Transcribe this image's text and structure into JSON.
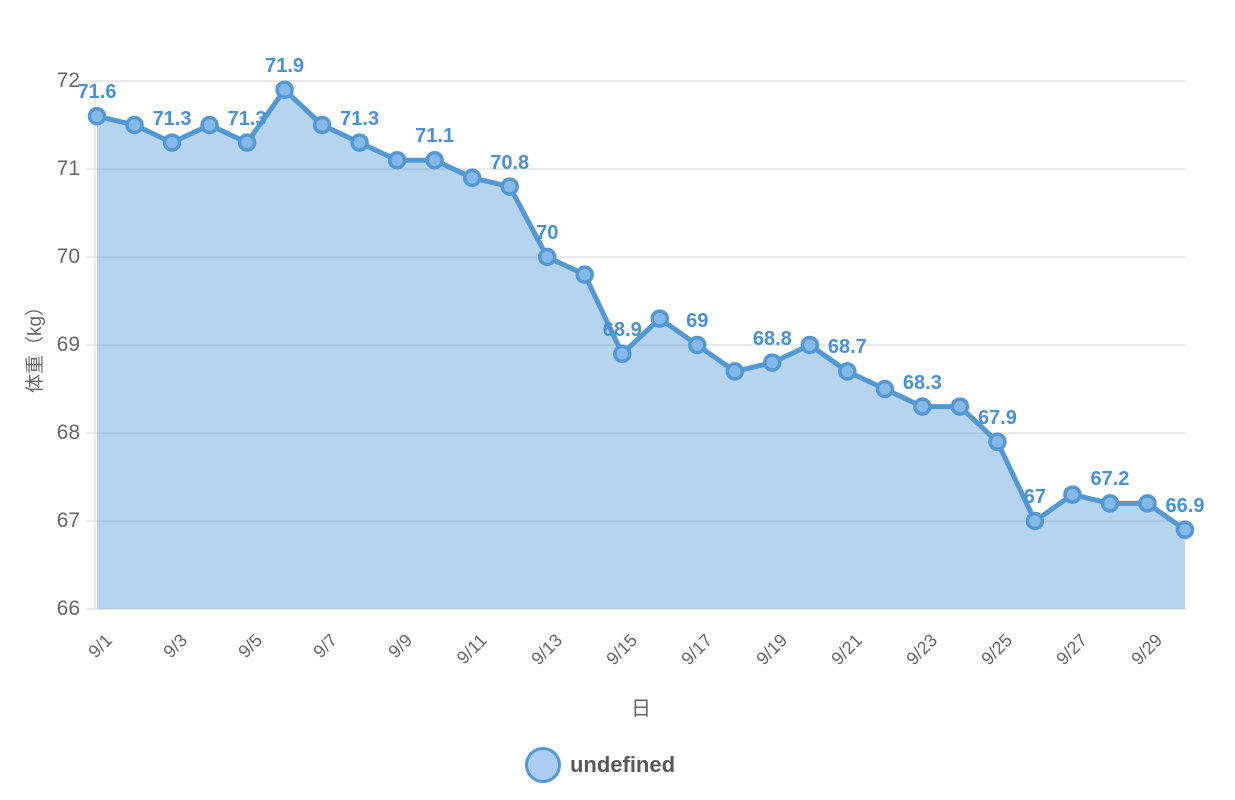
{
  "chart_data": {
    "type": "area",
    "title": "",
    "xlabel": "日",
    "ylabel": "体重（kg）",
    "legend_position": "bottom",
    "grid": "horizontal-only",
    "ylim": [
      66,
      72
    ],
    "y_ticks": [
      72,
      71,
      70,
      69,
      68,
      67,
      66
    ],
    "x_tick_days": [
      1,
      3,
      5,
      7,
      9,
      11,
      13,
      15,
      17,
      19,
      21,
      23,
      25,
      27,
      29
    ],
    "x_tick_labels": [
      "9/1",
      "9/3",
      "9/5",
      "9/7",
      "9/9",
      "9/11",
      "9/13",
      "9/15",
      "9/17",
      "9/19",
      "9/21",
      "9/23",
      "9/25",
      "9/27",
      "9/29"
    ],
    "categories": [
      "9/1",
      "9/2",
      "9/3",
      "9/4",
      "9/5",
      "9/6",
      "9/7",
      "9/8",
      "9/9",
      "9/10",
      "9/11",
      "9/12",
      "9/13",
      "9/14",
      "9/15",
      "9/16",
      "9/17",
      "9/18",
      "9/19",
      "9/20",
      "9/21",
      "9/22",
      "9/23",
      "9/24",
      "9/25",
      "9/26",
      "9/27",
      "9/28",
      "9/29",
      "9/30"
    ],
    "series": [
      {
        "name": "undefined",
        "values": [
          71.6,
          71.5,
          71.3,
          71.5,
          71.3,
          71.9,
          71.5,
          71.3,
          71.1,
          71.1,
          70.9,
          70.8,
          70,
          69.8,
          68.9,
          69.3,
          69,
          68.7,
          68.8,
          69,
          68.7,
          68.5,
          68.3,
          68.3,
          67.9,
          67,
          67.3,
          67.2,
          67.2,
          66.9
        ]
      }
    ],
    "visible_point_labels": {
      "0": "71.6",
      "2": "71.3",
      "4": "71.3",
      "5": "71.9",
      "7": "71.3",
      "9": "71.1",
      "11": "70.8",
      "12": "70",
      "14": "68.9",
      "16": "69",
      "18": "68.8",
      "20": "68.7",
      "22": "68.3",
      "24": "67.9",
      "25": "67",
      "27": "67.2",
      "29": "66.9"
    },
    "colors": {
      "line": "#5198d5",
      "area_fill": "rgba(81,152,213,0.42)",
      "point_fill": "#87b9e8",
      "point_border": "#5198d5",
      "data_label": "#4a90d6",
      "grid_line": "#e3e3e3",
      "tick_text": "#666666",
      "legend_text": "#595959",
      "legend_marker_fill": "#abcdf0",
      "background": "#ffffff"
    }
  }
}
